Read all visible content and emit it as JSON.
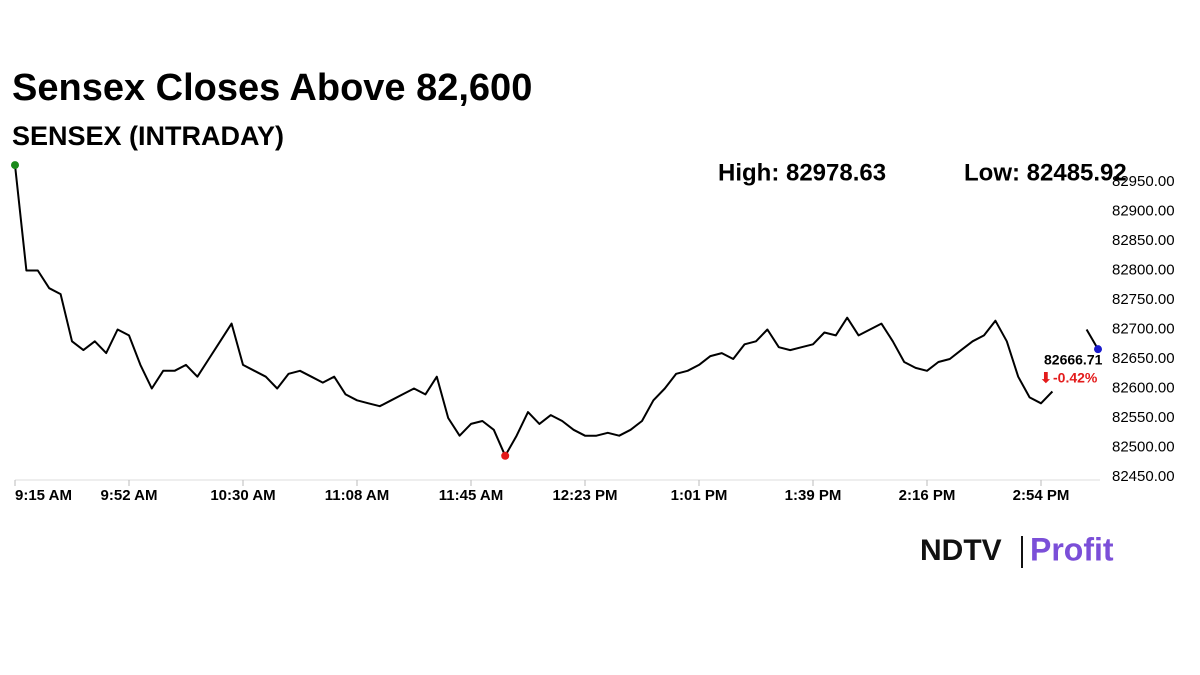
{
  "chart_data": {
    "type": "line",
    "title": "Sensex Closes Above 82,600",
    "subtitle": "SENSEX (INTRADAY)",
    "annotations": {
      "high": "High: 82978.63",
      "low": "Low: 82485.92",
      "last": "82666.71",
      "change": "-0.42%"
    },
    "categories": [
      "9:15 AM",
      null,
      null,
      null,
      null,
      null,
      null,
      null,
      null,
      null,
      "9:52 AM",
      null,
      null,
      null,
      null,
      null,
      null,
      null,
      null,
      null,
      "10:30 AM",
      null,
      null,
      null,
      null,
      null,
      null,
      null,
      null,
      null,
      "11:08 AM",
      null,
      null,
      null,
      null,
      null,
      null,
      null,
      null,
      null,
      "11:45 AM",
      null,
      null,
      null,
      null,
      null,
      null,
      null,
      null,
      null,
      "12:23 PM",
      null,
      null,
      null,
      null,
      null,
      null,
      null,
      null,
      null,
      "1:01 PM",
      null,
      null,
      null,
      null,
      null,
      null,
      null,
      null,
      null,
      "1:39 PM",
      null,
      null,
      null,
      null,
      null,
      null,
      null,
      null,
      null,
      "2:16 PM",
      null,
      null,
      null,
      null,
      null,
      null,
      null,
      null,
      null,
      "2:54 PM",
      null,
      null,
      null,
      null,
      null
    ],
    "series": [
      {
        "name": "SENSEX",
        "color": "#000000",
        "values": [
          82978.63,
          82800,
          82800,
          82770,
          82760,
          82680,
          82665,
          82680,
          82660,
          82700,
          82690,
          82640,
          82600,
          82630,
          82630,
          82640,
          82620,
          82650,
          82680,
          82710,
          82640,
          82630,
          82620,
          82600,
          82625,
          82630,
          82620,
          82610,
          82620,
          82590,
          82580,
          82575,
          82570,
          82580,
          82590,
          82600,
          82590,
          82620,
          82550,
          82520,
          82540,
          82545,
          82530,
          82485.92,
          82520,
          82560,
          82540,
          82555,
          82545,
          82530,
          82520,
          82520,
          82525,
          82520,
          82530,
          82545,
          82580,
          82600,
          82625,
          82630,
          82640,
          82655,
          82660,
          82650,
          82675,
          82680,
          82700,
          82670,
          82665,
          82670,
          82675,
          82695,
          82690,
          82720,
          82690,
          82700,
          82710,
          82680,
          82645,
          82635,
          82630,
          82645,
          82650,
          82665,
          82680,
          82690,
          82715,
          82680,
          82620,
          82585,
          82575,
          82595,
          null,
          null,
          82700,
          82666.71
        ]
      }
    ],
    "marker_colors": {
      "start": "#1a8a1a",
      "low": "#e31b1b",
      "end": "#1a1acc"
    },
    "change_color": "#e31b1b",
    "ylim": [
      82430,
      82990
    ],
    "yticks": [
      {
        "value": 82450,
        "label": "82450.00"
      },
      {
        "value": 82500,
        "label": "82500.00"
      },
      {
        "value": 82550,
        "label": "82550.00"
      },
      {
        "value": 82600,
        "label": "82600.00"
      },
      {
        "value": 82650,
        "label": "82650.00"
      },
      {
        "value": 82700,
        "label": "82700.00"
      },
      {
        "value": 82750,
        "label": "82750.00"
      },
      {
        "value": 82800,
        "label": "82800.00"
      },
      {
        "value": 82850,
        "label": "82850.00"
      },
      {
        "value": 82900,
        "label": "82900.00"
      },
      {
        "value": 82950,
        "label": "82950.00"
      }
    ],
    "grid": false
  },
  "brand": {
    "left": "NDTV",
    "right": "Profit"
  }
}
